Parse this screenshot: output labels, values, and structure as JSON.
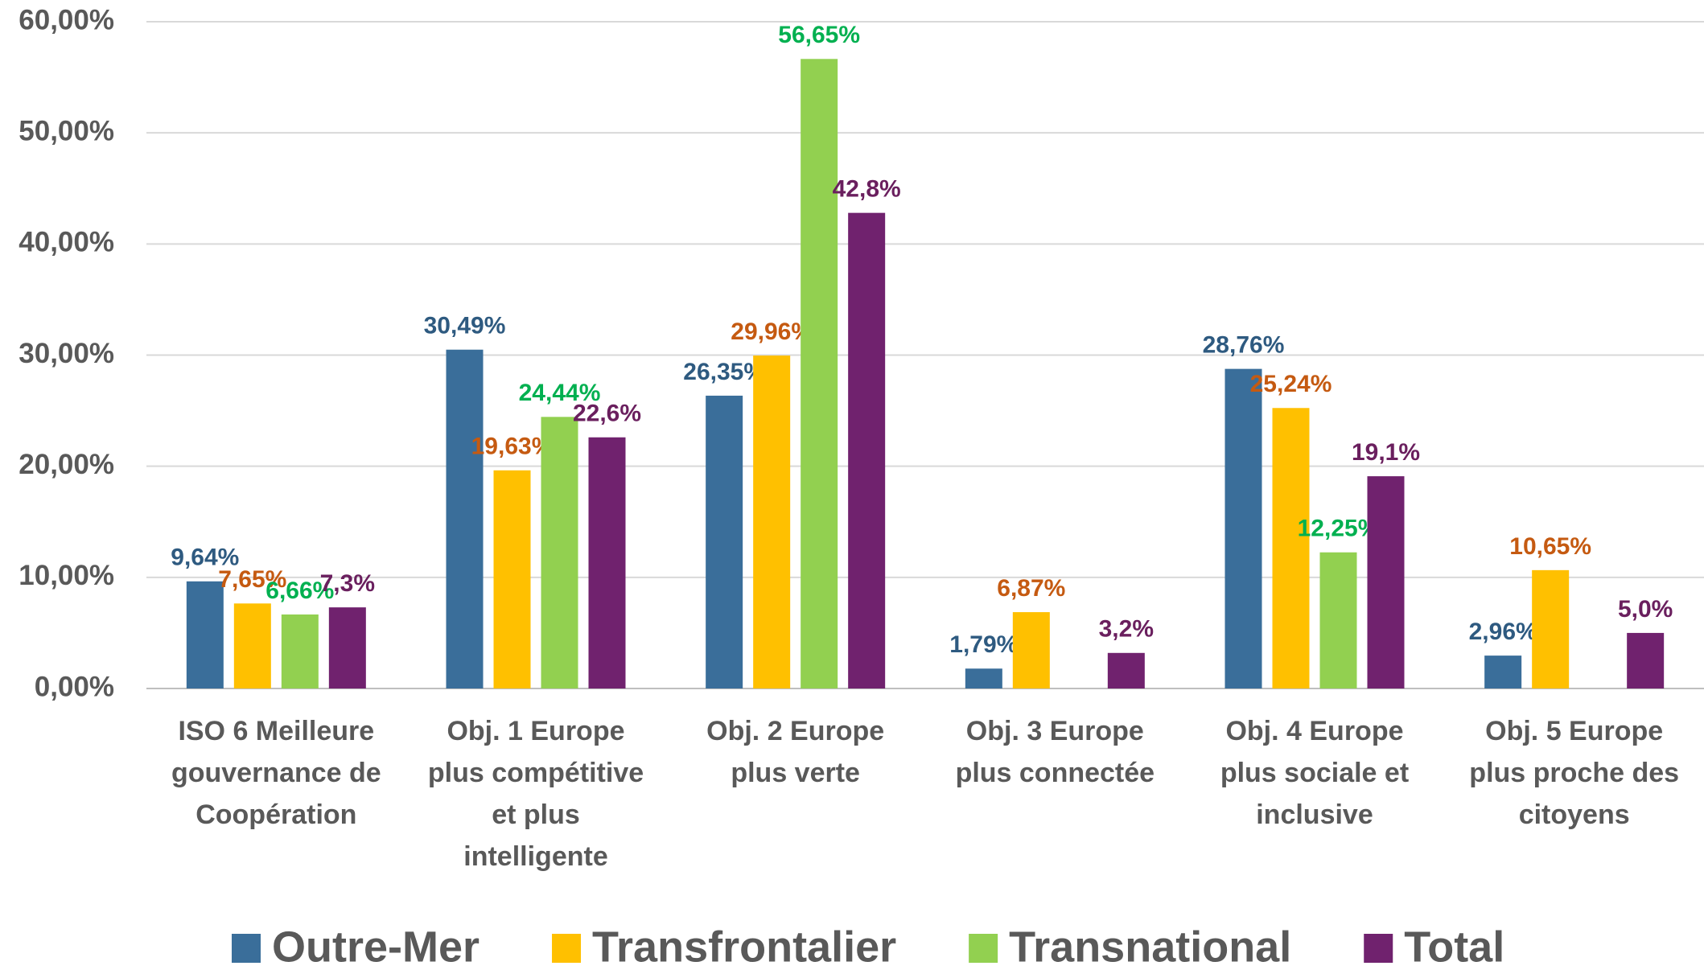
{
  "chart_data": {
    "type": "bar",
    "categories": [
      "ISO 6 Meilleure\ngouvernance de\nCoopération",
      "Obj. 1 Europe\nplus compétitive\net plus\nintelligente",
      "Obj. 2 Europe\nplus verte",
      "Obj. 3 Europe\nplus connectée",
      "Obj. 4 Europe\nplus sociale et\ninclusive",
      "Obj. 5 Europe\nplus proche des\ncitoyens"
    ],
    "series": [
      {
        "name": "Outre-Mer",
        "color": "#3a6e9a",
        "label_color": "#2e5a80",
        "values": [
          9.64,
          30.49,
          26.35,
          1.79,
          28.76,
          2.96
        ],
        "value_labels": [
          "9,64%",
          "30,49%",
          "26,35%",
          "1,79%",
          "28,76%",
          "2,96%"
        ]
      },
      {
        "name": "Transfrontalier",
        "color": "#ffc000",
        "label_color": "#c55a11",
        "values": [
          7.65,
          19.63,
          29.96,
          6.87,
          25.24,
          10.65
        ],
        "value_labels": [
          "7,65%",
          "19,63%",
          "29,96%",
          "6,87%",
          "25,24%",
          "10,65%"
        ]
      },
      {
        "name": "Transnational",
        "color": "#92d050",
        "label_color": "#00b050",
        "values": [
          6.66,
          24.44,
          56.65,
          null,
          12.25,
          null
        ],
        "value_labels": [
          "6,66%",
          "24,44%",
          "56,65%",
          null,
          "12,25%",
          null
        ]
      },
      {
        "name": "Total",
        "color": "#70226e",
        "label_color": "#6a1f5e",
        "values": [
          7.3,
          22.6,
          42.8,
          3.2,
          19.1,
          5.0
        ],
        "value_labels": [
          "7,3%",
          "22,6%",
          "42,8%",
          "3,2%",
          "19,1%",
          "5,0%"
        ]
      }
    ],
    "ylim": [
      0,
      60
    ],
    "yticks": [
      {
        "value": 0,
        "label": "0,00%"
      },
      {
        "value": 10,
        "label": "10,00%"
      },
      {
        "value": 20,
        "label": "20,00%"
      },
      {
        "value": 30,
        "label": "30,00%"
      },
      {
        "value": 40,
        "label": "40,00%"
      },
      {
        "value": 50,
        "label": "50,00%"
      },
      {
        "value": 60,
        "label": "60,00%"
      }
    ],
    "grid": true,
    "legend": "bottom"
  }
}
